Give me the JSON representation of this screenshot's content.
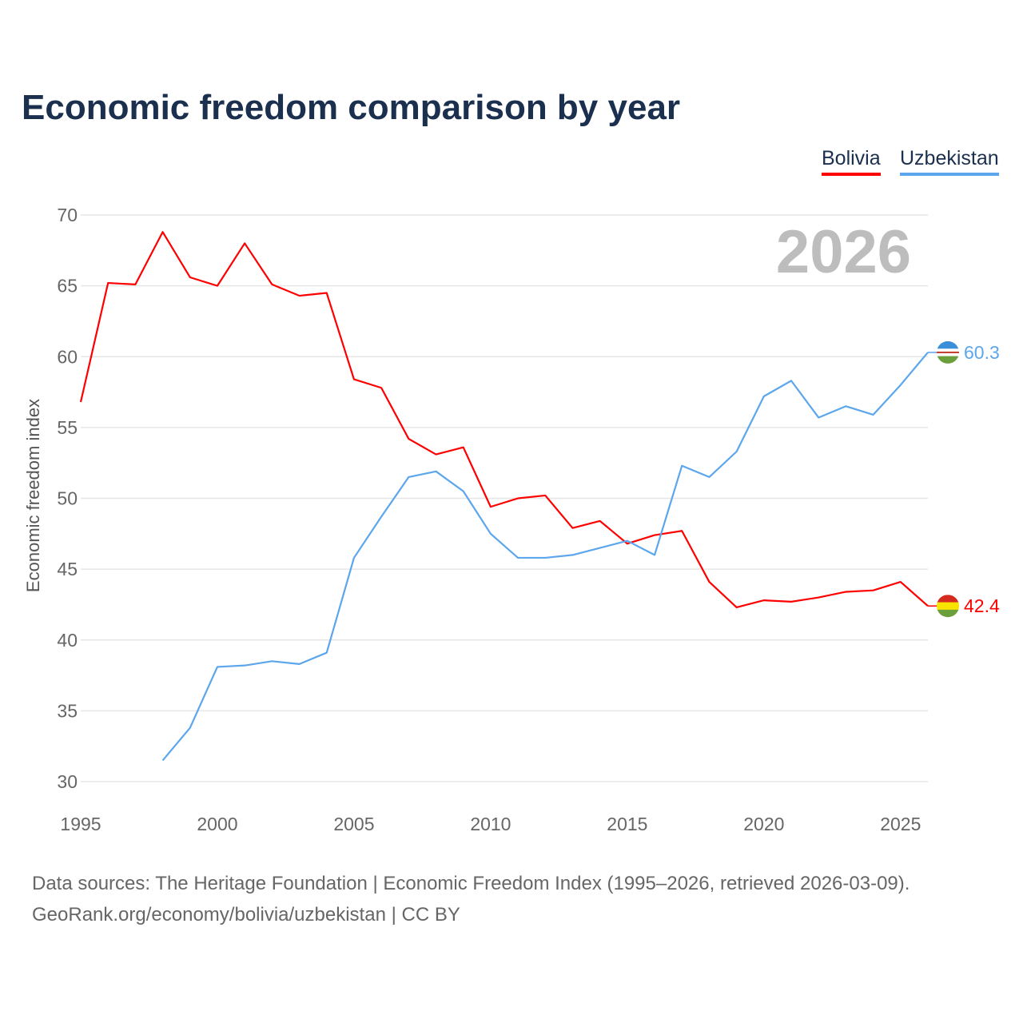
{
  "title": "Economic freedom comparison by year",
  "current_year": "2026",
  "footer": {
    "line1": "Data sources: The Heritage Foundation | Economic Freedom Index (1995–2026, retrieved 2026-03-09).",
    "line2": "GeoRank.org/economy/bolivia/uzbekistan | CC BY"
  },
  "chart_data": {
    "type": "line",
    "title": "Economic freedom comparison by year",
    "xlabel": "",
    "ylabel": "Economic freedom index",
    "xlim": [
      1995,
      2026
    ],
    "ylim": [
      30,
      70
    ],
    "x_ticks": [
      "1995",
      "2000",
      "2005",
      "2010",
      "2015",
      "2020",
      "2025"
    ],
    "y_ticks": [
      "30",
      "35",
      "40",
      "45",
      "50",
      "55",
      "60",
      "65",
      "70"
    ],
    "grid": true,
    "legend_position": "top-right",
    "series": [
      {
        "name": "Bolivia",
        "color": "#ff0000",
        "end_label": "42.4",
        "x": [
          1995,
          1996,
          1997,
          1998,
          1999,
          2000,
          2001,
          2002,
          2003,
          2004,
          2005,
          2006,
          2007,
          2008,
          2009,
          2010,
          2011,
          2012,
          2013,
          2014,
          2015,
          2016,
          2017,
          2018,
          2019,
          2020,
          2021,
          2022,
          2023,
          2024,
          2025,
          2026
        ],
        "values": [
          56.8,
          65.2,
          65.1,
          68.8,
          65.6,
          65.0,
          68.0,
          65.1,
          64.3,
          64.5,
          58.4,
          57.8,
          54.2,
          53.1,
          53.6,
          49.4,
          50.0,
          50.2,
          47.9,
          48.4,
          46.8,
          47.4,
          47.7,
          44.1,
          42.3,
          42.8,
          42.7,
          43.0,
          43.4,
          43.5,
          44.1,
          42.4
        ]
      },
      {
        "name": "Uzbekistan",
        "color": "#5ba6ec",
        "end_label": "60.3",
        "x": [
          1998,
          1999,
          2000,
          2001,
          2002,
          2003,
          2004,
          2005,
          2006,
          2007,
          2008,
          2009,
          2010,
          2011,
          2012,
          2013,
          2014,
          2015,
          2016,
          2017,
          2018,
          2019,
          2020,
          2021,
          2022,
          2023,
          2024,
          2025,
          2026
        ],
        "values": [
          31.5,
          33.8,
          38.1,
          38.2,
          38.5,
          38.3,
          39.1,
          45.8,
          48.7,
          51.5,
          51.9,
          50.5,
          47.5,
          45.8,
          45.8,
          46.0,
          46.5,
          47.0,
          46.0,
          52.3,
          51.5,
          53.3,
          57.2,
          58.3,
          55.7,
          56.5,
          55.9,
          58.0,
          60.3
        ]
      }
    ]
  }
}
